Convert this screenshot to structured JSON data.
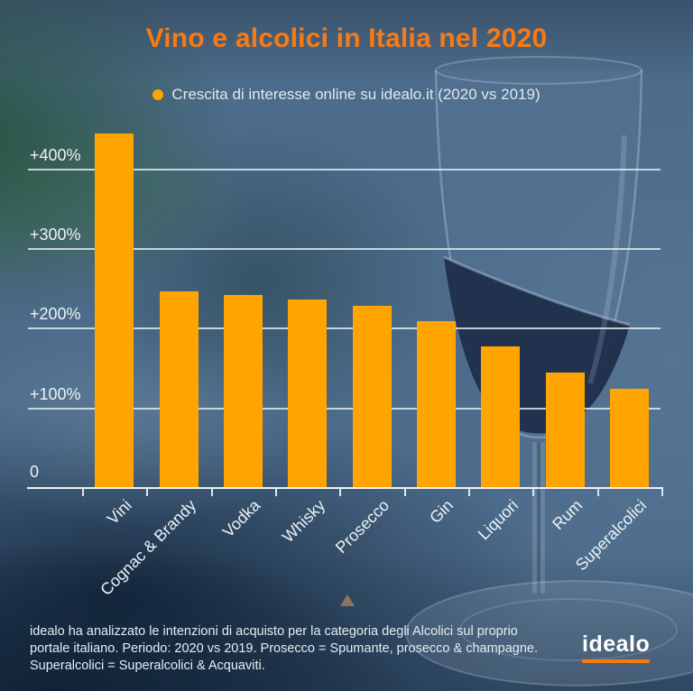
{
  "title": "Vino e alcolici in Italia nel 2020",
  "legend": {
    "label": "Crescita di interesse online su idealo.it (2020 vs 2019)"
  },
  "chart_data": {
    "type": "bar",
    "title": "Vino e alcolici in Italia nel 2020",
    "subtitle": "Crescita di interesse online su idealo.it (2020 vs 2019)",
    "categories": [
      "Vini",
      "Cognac & Brandy",
      "Vodka",
      "Whisky",
      "Prosecco",
      "Gin",
      "Liquori",
      "Rum",
      "Superalcolici"
    ],
    "values": [
      445,
      247,
      242,
      237,
      229,
      210,
      178,
      145,
      125
    ],
    "unit": "%",
    "xlabel": "",
    "ylabel": "",
    "ylim": [
      0,
      455
    ],
    "yticks": [
      {
        "label": "+400%",
        "value": 400
      },
      {
        "label": "+300%",
        "value": 300
      },
      {
        "label": "+200%",
        "value": 200
      },
      {
        "label": "+100%",
        "value": 100
      },
      {
        "label": "0",
        "value": 0
      }
    ],
    "grid": true,
    "legend_position": "top-center",
    "bar_color": "#ffa400"
  },
  "footer": {
    "lines": [
      "idealo ha analizzato le intenzioni di acquisto per la categoria degli Alcolici sul proprio",
      "portale italiano. Periodo: 2020 vs 2019. Prosecco = Spumante, prosecco & champagne.",
      "Superalcolici = Superalcolici & Acquaviti."
    ]
  },
  "logo": {
    "text": "idealo"
  },
  "colors": {
    "title_orange": "#f87a14",
    "bar_orange": "#ffa400",
    "logo_underline_orange": "#f7790f",
    "background_steel_blue": "#4d6c8b",
    "background_dark_navy": "#16293f",
    "background_green": "#33544a",
    "text_light": "#e6edf2"
  },
  "icons": {
    "legend_dot": "filled-circle",
    "scroll_top_triangle": "up-triangle",
    "wine_glass": "wine-glass-photo"
  }
}
